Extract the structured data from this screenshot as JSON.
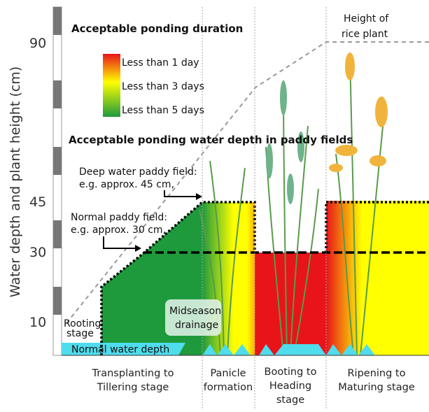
{
  "axis": {
    "label": "Water depth and plant height (cm)",
    "ticks": [
      "90",
      "45",
      "30",
      "10"
    ]
  },
  "legend": {
    "title": "Acceptable ponding duration",
    "items": [
      "Less than 1 day",
      "Less than 3 days",
      "Less than 5 days"
    ]
  },
  "depth_note": {
    "title": "Acceptable ponding water depth in paddy fields",
    "deep_line1": "Deep water paddy field:",
    "deep_line2": "e.g. approx. 45 cm,",
    "normal_line1": "Normal paddy field:",
    "normal_line2": "e.g. approx. 30 cm,"
  },
  "plant_height": [
    "Height of",
    "rice plant"
  ],
  "labels": {
    "rooting": [
      "Rooting",
      "stage"
    ],
    "midseason": [
      "Midseason",
      "drainage"
    ],
    "normal_depth": "Normal water depth"
  },
  "stages": [
    [
      "Transplanting to",
      "Tillering stage"
    ],
    [
      "Panicle",
      "formation"
    ],
    [
      "Booting to",
      "Heading",
      "stage"
    ],
    [
      "Ripening to",
      "Maturing stage"
    ]
  ]
}
